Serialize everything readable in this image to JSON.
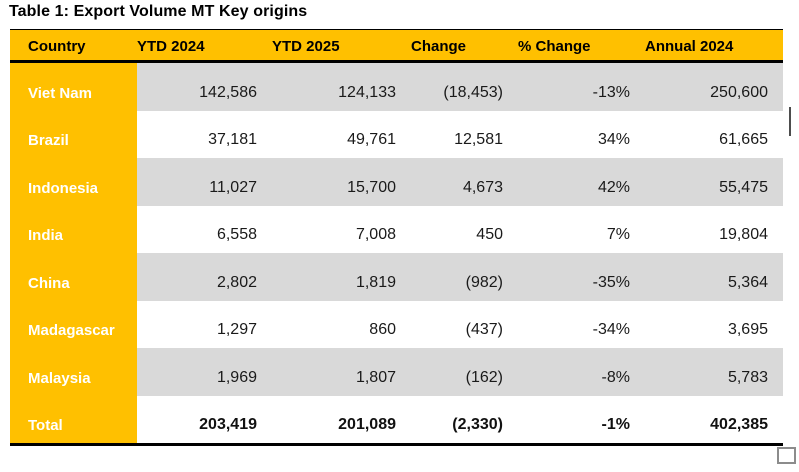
{
  "title": "Table 1: Export Volume MT Key origins",
  "colors": {
    "accent_orange": "#FFC000",
    "row_gray": "#D9D9D9",
    "border_black": "#000000",
    "country_text": "#FFFFFF"
  },
  "table": {
    "columns": [
      "Country",
      "YTD 2024",
      "YTD 2025",
      "Change",
      "% Change",
      "Annual 2024"
    ],
    "rows": [
      [
        "Viet Nam",
        "142,586",
        "124,133",
        "(18,453)",
        "-13%",
        "250,600"
      ],
      [
        "Brazil",
        "37,181",
        "49,761",
        "12,581",
        "34%",
        "61,665"
      ],
      [
        "Indonesia",
        "11,027",
        "15,700",
        "4,673",
        "42%",
        "55,475"
      ],
      [
        "India",
        "6,558",
        "7,008",
        "450",
        "7%",
        "19,804"
      ],
      [
        "China",
        "2,802",
        "1,819",
        "(982)",
        "-35%",
        "5,364"
      ],
      [
        "Madagascar",
        "1,297",
        "860",
        "(437)",
        "-34%",
        "3,695"
      ],
      [
        "Malaysia",
        "1,969",
        "1,807",
        "(162)",
        "-8%",
        "5,783"
      ],
      [
        "Total",
        "203,419",
        "201,089",
        "(2,330)",
        "-1%",
        "402,385"
      ]
    ]
  },
  "chart_data": {
    "type": "table",
    "title": "Table 1: Export Volume MT Key origins",
    "columns": [
      "Country",
      "YTD 2024",
      "YTD 2025",
      "Change",
      "% Change",
      "Annual 2024"
    ],
    "rows": [
      {
        "country": "Viet Nam",
        "ytd_2024": 142586,
        "ytd_2025": 124133,
        "change": -18453,
        "pct_change": -13,
        "annual_2024": 250600
      },
      {
        "country": "Brazil",
        "ytd_2024": 37181,
        "ytd_2025": 49761,
        "change": 12581,
        "pct_change": 34,
        "annual_2024": 61665
      },
      {
        "country": "Indonesia",
        "ytd_2024": 11027,
        "ytd_2025": 15700,
        "change": 4673,
        "pct_change": 42,
        "annual_2024": 55475
      },
      {
        "country": "India",
        "ytd_2024": 6558,
        "ytd_2025": 7008,
        "change": 450,
        "pct_change": 7,
        "annual_2024": 19804
      },
      {
        "country": "China",
        "ytd_2024": 2802,
        "ytd_2025": 1819,
        "change": -982,
        "pct_change": -35,
        "annual_2024": 5364
      },
      {
        "country": "Madagascar",
        "ytd_2024": 1297,
        "ytd_2025": 860,
        "change": -437,
        "pct_change": -34,
        "annual_2024": 3695
      },
      {
        "country": "Malaysia",
        "ytd_2024": 1969,
        "ytd_2025": 1807,
        "change": -162,
        "pct_change": -8,
        "annual_2024": 5783
      },
      {
        "country": "Total",
        "ytd_2024": 203419,
        "ytd_2025": 201089,
        "change": -2330,
        "pct_change": -1,
        "annual_2024": 402385
      }
    ]
  }
}
